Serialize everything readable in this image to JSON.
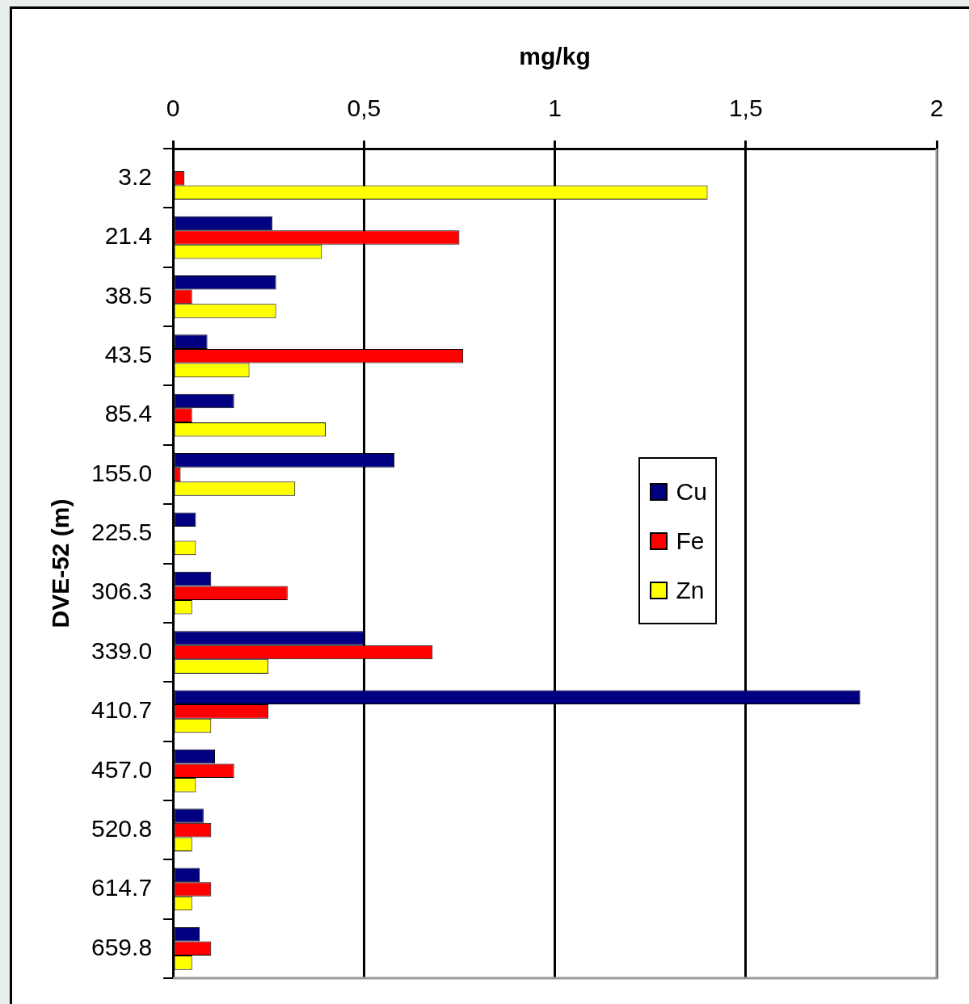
{
  "chart_data": {
    "type": "bar",
    "orientation": "horizontal",
    "xlabel": "mg/kg",
    "ylabel": "DVE-52 (m)",
    "categories": [
      "3.2",
      "21.4",
      "38.5",
      "43.5",
      "85.4",
      "155.0",
      "225.5",
      "306.3",
      "339.0",
      "410.7",
      "457.0",
      "520.8",
      "614.7",
      "659.8"
    ],
    "series": [
      {
        "name": "Cu",
        "color": "#000080",
        "values": [
          null,
          0.26,
          0.27,
          0.09,
          0.16,
          0.58,
          0.06,
          0.1,
          0.5,
          1.8,
          0.11,
          0.08,
          0.07,
          0.07
        ]
      },
      {
        "name": "Fe",
        "color": "#ff0000",
        "values": [
          0.03,
          0.75,
          0.05,
          0.76,
          0.05,
          0.02,
          null,
          0.3,
          0.68,
          0.25,
          0.16,
          0.1,
          0.1,
          0.1
        ]
      },
      {
        "name": "Zn",
        "color": "#ffff00",
        "values": [
          1.4,
          0.39,
          0.27,
          0.2,
          0.4,
          0.32,
          0.06,
          0.05,
          0.25,
          0.1,
          0.06,
          0.05,
          0.05,
          0.05
        ]
      }
    ],
    "xlim": [
      0,
      2
    ],
    "xticks": [
      0,
      {
        "value": 0.5,
        "label": "0,5"
      },
      1,
      {
        "value": 1.5,
        "label": "1,5"
      },
      2
    ],
    "grid": "x",
    "legend": "right"
  }
}
